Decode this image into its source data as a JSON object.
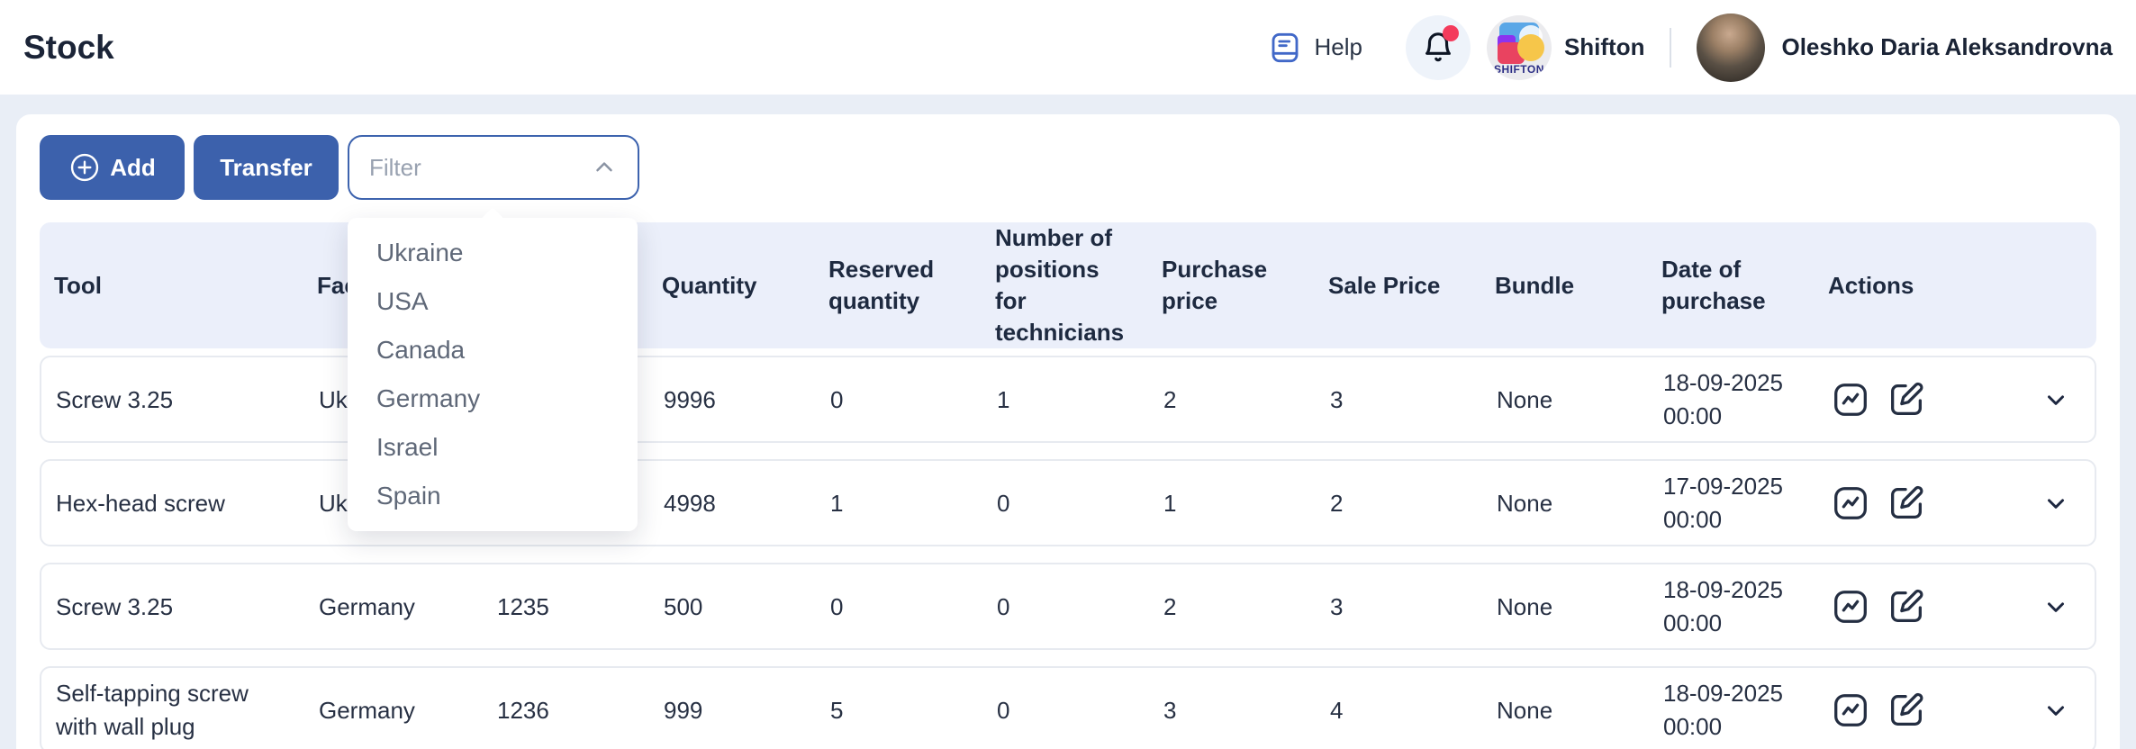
{
  "header": {
    "title": "Stock",
    "help_label": "Help",
    "brand_name": "Shifton",
    "logo_text": "SHIFTON",
    "user_name": "Oleshko Daria Aleksandrovna"
  },
  "toolbar": {
    "add_label": "Add",
    "transfer_label": "Transfer",
    "filter_placeholder": "Filter"
  },
  "filter_dropdown": {
    "options": [
      "Ukraine",
      "USA",
      "Canada",
      "Germany",
      "Israel",
      "Spain"
    ]
  },
  "table": {
    "columns": [
      "Tool",
      "Facility",
      "",
      "Quantity",
      "Reserved quantity",
      "Number of positions for technicians",
      "Purchase price",
      "Sale Price",
      "Bundle",
      "Date of purchase",
      "Actions"
    ],
    "rows": [
      {
        "tool": "Screw 3.25",
        "facility": "Ukraine",
        "number": "",
        "quantity": "9996",
        "reserved_quantity": "0",
        "positions": "1",
        "purchase_price": "2",
        "sale_price": "3",
        "bundle": "None",
        "purchase_date": "18-09-2025",
        "purchase_time": "00:00"
      },
      {
        "tool": "Hex-head screw",
        "facility": "Ukraine",
        "number": "",
        "quantity": "4998",
        "reserved_quantity": "1",
        "positions": "0",
        "purchase_price": "1",
        "sale_price": "2",
        "bundle": "None",
        "purchase_date": "17-09-2025",
        "purchase_time": "00:00"
      },
      {
        "tool": "Screw 3.25",
        "facility": "Germany",
        "number": "1235",
        "quantity": "500",
        "reserved_quantity": "0",
        "positions": "0",
        "purchase_price": "2",
        "sale_price": "3",
        "bundle": "None",
        "purchase_date": "18-09-2025",
        "purchase_time": "00:00"
      },
      {
        "tool": "Self-tapping screw with wall plug",
        "facility": "Germany",
        "number": "1236",
        "quantity": "999",
        "reserved_quantity": "5",
        "positions": "0",
        "purchase_price": "3",
        "sale_price": "4",
        "bundle": "None",
        "purchase_date": "18-09-2025",
        "purchase_time": "00:00"
      }
    ]
  },
  "colors": {
    "accent_blue": "#3c61ac",
    "notification_red": "#f43b5c"
  }
}
